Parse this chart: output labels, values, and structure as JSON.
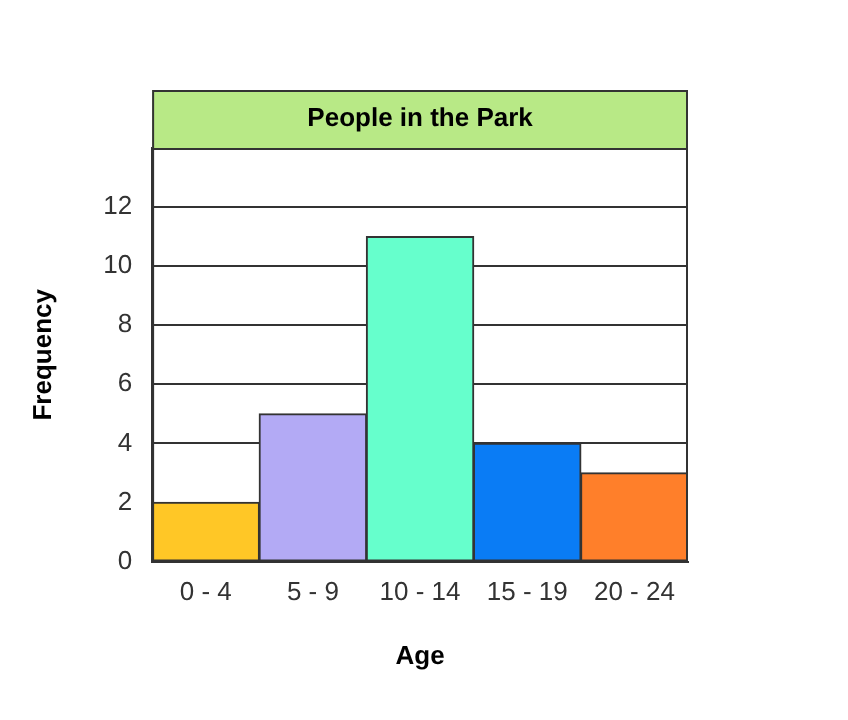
{
  "chart_data": {
    "type": "bar",
    "title": "People in the Park",
    "xlabel": "Age",
    "ylabel": "Frequency",
    "categories": [
      "0 - 4",
      "5 - 9",
      "10 - 14",
      "15 - 19",
      "20 - 24"
    ],
    "values": [
      2,
      5,
      11,
      4,
      3
    ],
    "colors": [
      "#ffc726",
      "#b3aaf5",
      "#66ffcc",
      "#0a7cf5",
      "#ff7f2a"
    ],
    "ylim": [
      0,
      14
    ],
    "yticks": [
      0,
      2,
      4,
      6,
      8,
      10,
      12
    ],
    "grid": "y",
    "legend": false
  }
}
